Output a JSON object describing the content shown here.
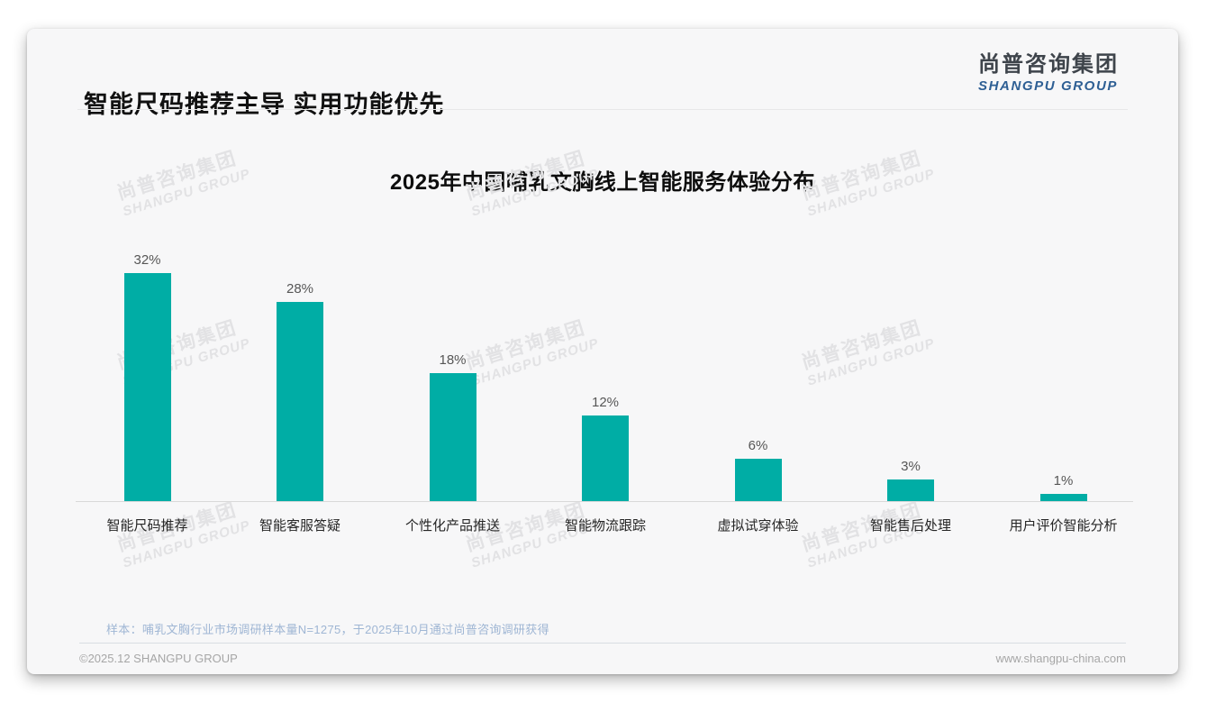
{
  "header": {
    "title": "智能尺码推荐主导 实用功能优先",
    "logo": {
      "cn": "尚普咨询集团",
      "en": "SHANGPU GROUP"
    }
  },
  "watermark": {
    "cn": "尚普咨询集团",
    "en": "SHANGPU GROUP"
  },
  "chart_data": {
    "type": "bar",
    "title": "2025年中国哺乳文胸线上智能服务体验分布",
    "categories": [
      "智能尺码推荐",
      "智能客服答疑",
      "个性化产品推送",
      "智能物流跟踪",
      "虚拟试穿体验",
      "智能售后处理",
      "用户评价智能分析"
    ],
    "values": [
      32,
      28,
      18,
      12,
      6,
      3,
      1
    ],
    "value_labels": [
      "32%",
      "28%",
      "18%",
      "12%",
      "6%",
      "3%",
      "1%"
    ],
    "unit": "%",
    "bar_color": "#00ADA5",
    "xlabel": "",
    "ylabel": "",
    "ylim": [
      0,
      35
    ],
    "grid": false,
    "legend": false
  },
  "footnote": "样本：哺乳文胸行业市场调研样本量N=1275，于2025年10月通过尚普咨询调研获得",
  "footer": {
    "left": "©2025.12 SHANGPU GROUP",
    "right": "www.shangpu-china.com"
  }
}
